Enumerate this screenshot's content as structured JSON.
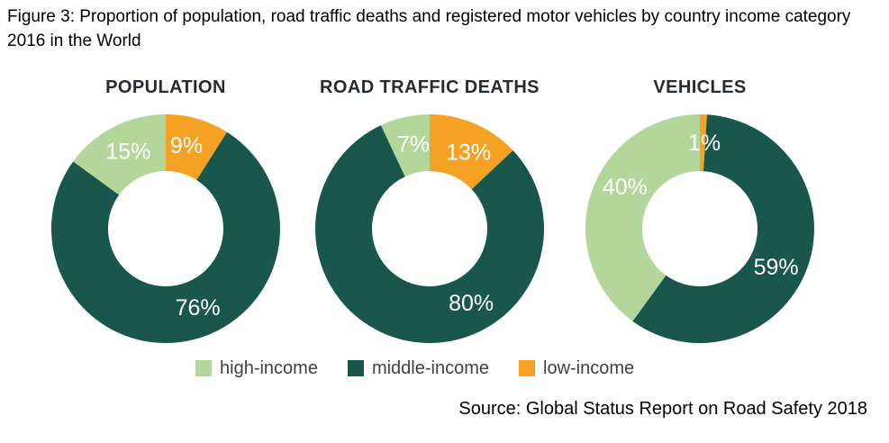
{
  "figure_caption": "Figure 3: Proportion of population, road traffic deaths and registered motor vehicles by country income category 2016 in the World",
  "source": "Source: Global Status Report on Road Safety 2018",
  "colors": {
    "high-income": "#B3D69B",
    "middle-income": "#19574C",
    "low-income": "#F4A124",
    "chart_title": "#262c33",
    "label_text": "#ffffff",
    "legend_text": "#3f4040"
  },
  "legend": [
    {
      "label": "high-income",
      "color": "#B3D69B"
    },
    {
      "label": "middle-income",
      "color": "#19574C"
    },
    {
      "label": "low-income",
      "color": "#F4A124"
    }
  ],
  "chart_data": [
    {
      "type": "pie",
      "donut": true,
      "title": "POPULATION",
      "start_deg": 0,
      "clockwise": true,
      "hole_ratio": 0.5,
      "slices": [
        {
          "category": "low-income",
          "value": 9,
          "label": "9%",
          "label_deg": 14
        },
        {
          "category": "middle-income",
          "value": 76,
          "label": "76%",
          "label_deg": 158
        },
        {
          "category": "high-income",
          "value": 15,
          "label": "15%",
          "label_deg": 334
        }
      ]
    },
    {
      "type": "pie",
      "donut": true,
      "title": "ROAD TRAFFIC DEATHS",
      "start_deg": 0,
      "clockwise": true,
      "hole_ratio": 0.5,
      "slices": [
        {
          "category": "low-income",
          "value": 13,
          "label": "13%",
          "label_deg": 27
        },
        {
          "category": "middle-income",
          "value": 80,
          "label": "80%",
          "label_deg": 151
        },
        {
          "category": "high-income",
          "value": 7,
          "label": "7%",
          "label_deg": 349
        }
      ]
    },
    {
      "type": "pie",
      "donut": true,
      "title": "VEHICLES",
      "start_deg": 0,
      "clockwise": true,
      "hole_ratio": 0.5,
      "slices": [
        {
          "category": "low-income",
          "value": 1,
          "label": "1%",
          "label_deg": 3
        },
        {
          "category": "middle-income",
          "value": 59,
          "label": "59%",
          "label_deg": 117
        },
        {
          "category": "high-income",
          "value": 40,
          "label": "40%",
          "label_deg": 299
        }
      ]
    }
  ]
}
